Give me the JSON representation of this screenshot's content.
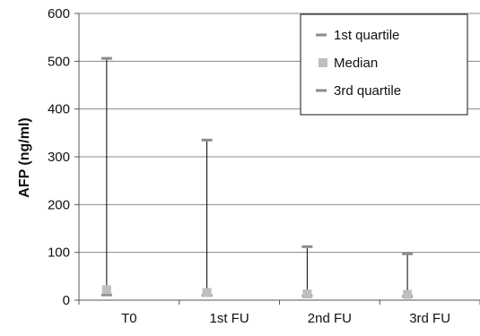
{
  "chart_data": {
    "type": "range",
    "title": "",
    "xlabel": "",
    "ylabel": "AFP (ng/ml)",
    "ylim": [
      0,
      600
    ],
    "yticks": [
      0,
      100,
      200,
      300,
      400,
      500,
      600
    ],
    "grid": true,
    "categories": [
      "T0",
      "1st FU",
      "2nd FU",
      "3rd FU"
    ],
    "series": [
      {
        "name": "1st quartile",
        "values": [
          11,
          10,
          9,
          8
        ],
        "color": "#8c8c8c",
        "marker": "dash"
      },
      {
        "name": "Median",
        "values": [
          22,
          16,
          13,
          12
        ],
        "color": "#bfbfbf",
        "marker": "square"
      },
      {
        "name": "3rd quartile",
        "values": [
          506,
          335,
          112,
          97
        ],
        "color": "#8c8c8c",
        "marker": "dash"
      }
    ],
    "legend": {
      "position": "top-right",
      "items": [
        "1st quartile",
        "Median",
        "3rd quartile"
      ]
    }
  }
}
